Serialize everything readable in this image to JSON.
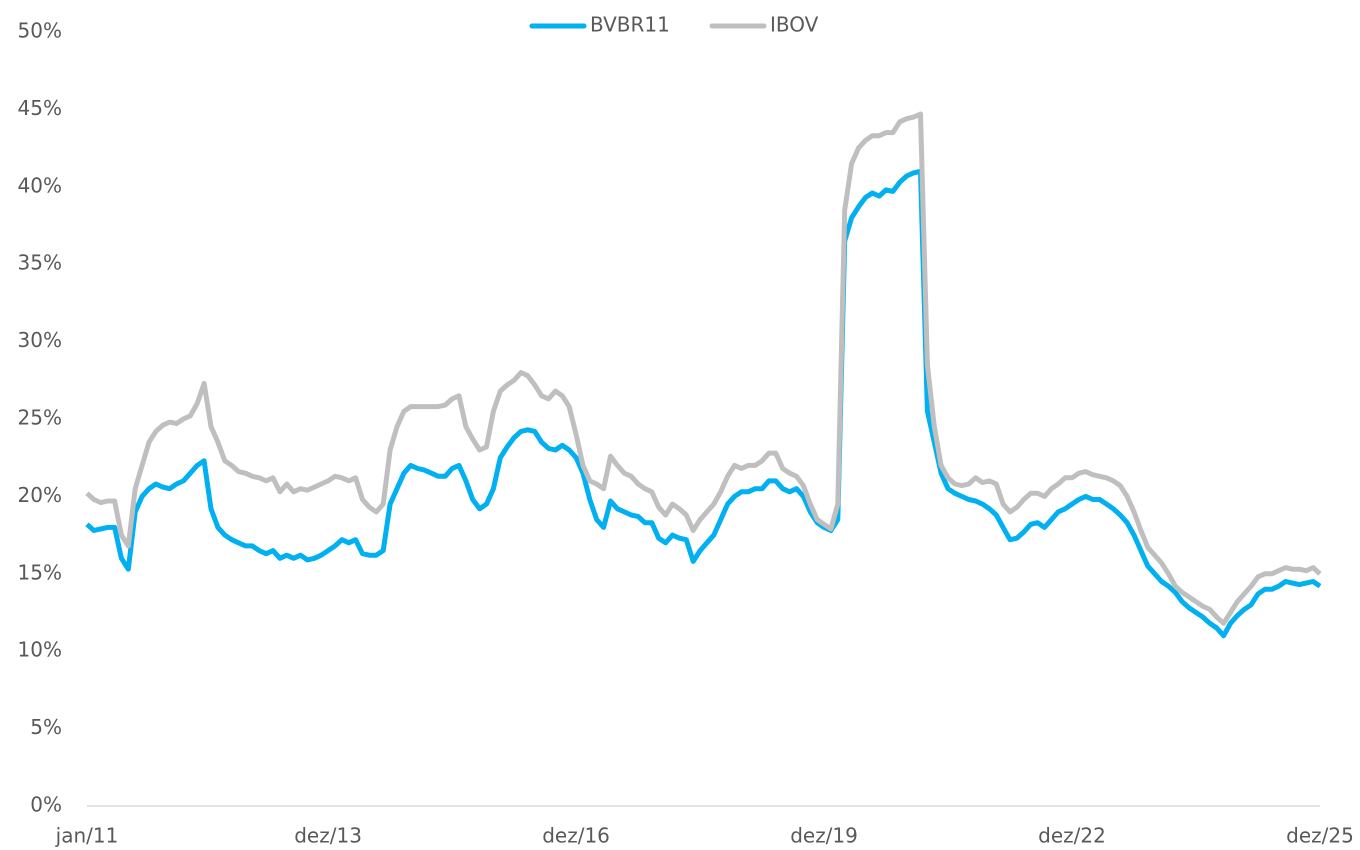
{
  "chart_data": {
    "type": "line",
    "categories": [
      "jan/11",
      null,
      null,
      null,
      null,
      null,
      null,
      null,
      null,
      null,
      null,
      null,
      null,
      null,
      null,
      null,
      null,
      null,
      null,
      null,
      null,
      null,
      null,
      null,
      null,
      null,
      null,
      null,
      null,
      null,
      null,
      null,
      null,
      null,
      null,
      "dez/13",
      null,
      null,
      null,
      null,
      null,
      null,
      null,
      null,
      null,
      null,
      null,
      null,
      null,
      null,
      null,
      null,
      null,
      null,
      null,
      null,
      null,
      null,
      null,
      null,
      null,
      null,
      null,
      null,
      null,
      null,
      null,
      null,
      null,
      null,
      null,
      "dez/16",
      null,
      null,
      null,
      null,
      null,
      null,
      null,
      null,
      null,
      null,
      null,
      null,
      null,
      null,
      null,
      null,
      null,
      null,
      null,
      null,
      null,
      null,
      null,
      null,
      null,
      null,
      null,
      null,
      null,
      null,
      null,
      null,
      null,
      null,
      null,
      "dez/19",
      null,
      null,
      null,
      null,
      null,
      null,
      null,
      null,
      null,
      null,
      null,
      null,
      null,
      null,
      null,
      null,
      null,
      null,
      null,
      null,
      null,
      null,
      null,
      null,
      null,
      null,
      null,
      null,
      null,
      null,
      null,
      null,
      null,
      null,
      null,
      "dez/22",
      null,
      null,
      null,
      null,
      null,
      null,
      null,
      null,
      null,
      null,
      null,
      null,
      null,
      null,
      null,
      null,
      null,
      null,
      null,
      null,
      null,
      null,
      null,
      null,
      null,
      null,
      null,
      null,
      null,
      null,
      null,
      null,
      null,
      null,
      null,
      "dez/25"
    ],
    "series": [
      {
        "name": "BVBR11",
        "color": "#00b0f0",
        "values": [
          18.2,
          17.8,
          17.9,
          18.0,
          18.0,
          16.0,
          15.3,
          19.0,
          20.0,
          20.5,
          20.8,
          20.6,
          20.5,
          20.8,
          21.0,
          21.5,
          22.0,
          22.3,
          19.2,
          18.0,
          17.5,
          17.2,
          17.0,
          16.8,
          16.8,
          16.5,
          16.3,
          16.5,
          16.0,
          16.2,
          16.0,
          16.2,
          15.9,
          16.0,
          16.2,
          16.5,
          16.8,
          17.2,
          17.0,
          17.2,
          16.3,
          16.2,
          16.2,
          16.5,
          19.5,
          20.5,
          21.5,
          22.0,
          21.8,
          21.7,
          21.5,
          21.3,
          21.3,
          21.8,
          22.0,
          21.0,
          19.8,
          19.2,
          19.5,
          20.5,
          22.5,
          23.2,
          23.8,
          24.2,
          24.3,
          24.2,
          23.5,
          23.1,
          23.0,
          23.3,
          23.0,
          22.5,
          21.5,
          19.8,
          18.5,
          18.0,
          19.7,
          19.2,
          19.0,
          18.8,
          18.7,
          18.3,
          18.3,
          17.3,
          17.0,
          17.5,
          17.3,
          17.2,
          15.8,
          16.5,
          17.0,
          17.5,
          18.5,
          19.5,
          20.0,
          20.3,
          20.3,
          20.5,
          20.5,
          21.0,
          21.0,
          20.5,
          20.3,
          20.5,
          20.0,
          19.0,
          18.3,
          18.0,
          17.8,
          18.5,
          36.5,
          38.0,
          38.7,
          39.3,
          39.6,
          39.4,
          39.8,
          39.7,
          40.3,
          40.7,
          40.9,
          41.0,
          25.5,
          23.5,
          21.5,
          20.5,
          20.2,
          20.0,
          19.8,
          19.7,
          19.5,
          19.2,
          18.8,
          18.0,
          17.2,
          17.3,
          17.7,
          18.2,
          18.3,
          18.0,
          18.5,
          19.0,
          19.2,
          19.5,
          19.8,
          20.0,
          19.8,
          19.8,
          19.5,
          19.2,
          18.8,
          18.3,
          17.5,
          16.5,
          15.5,
          15.0,
          14.5,
          14.2,
          13.8,
          13.2,
          12.8,
          12.5,
          12.2,
          11.8,
          11.5,
          11.0,
          11.8,
          12.3,
          12.7,
          13.0,
          13.7,
          14.0,
          14.0,
          14.2,
          14.5,
          14.4,
          14.3,
          14.4,
          14.5,
          14.2
        ]
      },
      {
        "name": "IBOV",
        "color": "#bfbfbf",
        "values": [
          20.2,
          19.8,
          19.6,
          19.7,
          19.7,
          17.5,
          16.8,
          20.5,
          22.0,
          23.5,
          24.2,
          24.6,
          24.8,
          24.7,
          25.0,
          25.2,
          26.0,
          27.3,
          24.5,
          23.5,
          22.3,
          22.0,
          21.6,
          21.5,
          21.3,
          21.2,
          21.0,
          21.2,
          20.3,
          20.8,
          20.3,
          20.5,
          20.4,
          20.6,
          20.8,
          21.0,
          21.3,
          21.2,
          21.0,
          21.2,
          19.8,
          19.3,
          19.0,
          19.5,
          23.0,
          24.5,
          25.5,
          25.8,
          25.8,
          25.8,
          25.8,
          25.8,
          25.9,
          26.3,
          26.5,
          24.5,
          23.7,
          23.0,
          23.2,
          25.5,
          26.8,
          27.2,
          27.5,
          28.0,
          27.8,
          27.2,
          26.5,
          26.3,
          26.8,
          26.5,
          25.8,
          24.0,
          22.0,
          21.0,
          20.8,
          20.5,
          22.6,
          22.0,
          21.5,
          21.3,
          20.8,
          20.5,
          20.3,
          19.3,
          18.8,
          19.5,
          19.2,
          18.8,
          17.8,
          18.5,
          19.0,
          19.5,
          20.3,
          21.3,
          22.0,
          21.8,
          22.0,
          22.0,
          22.3,
          22.8,
          22.8,
          21.8,
          21.5,
          21.3,
          20.7,
          19.5,
          18.5,
          18.2,
          17.9,
          19.5,
          38.5,
          41.5,
          42.5,
          43.0,
          43.3,
          43.3,
          43.5,
          43.5,
          44.2,
          44.4,
          44.5,
          44.7,
          28.5,
          24.5,
          22.0,
          21.2,
          20.8,
          20.7,
          20.8,
          21.2,
          20.9,
          21.0,
          20.8,
          19.5,
          19.0,
          19.3,
          19.8,
          20.2,
          20.2,
          20.0,
          20.5,
          20.8,
          21.2,
          21.2,
          21.5,
          21.6,
          21.4,
          21.3,
          21.2,
          21.0,
          20.7,
          20.0,
          19.0,
          17.8,
          16.7,
          16.2,
          15.7,
          15.0,
          14.2,
          13.8,
          13.5,
          13.2,
          12.9,
          12.7,
          12.2,
          11.8,
          12.5,
          13.2,
          13.7,
          14.2,
          14.8,
          15.0,
          15.0,
          15.2,
          15.4,
          15.3,
          15.3,
          15.2,
          15.4,
          15.0
        ]
      }
    ],
    "ylim": [
      0,
      50
    ],
    "yticks": [
      {
        "value": 0,
        "label": "0%"
      },
      {
        "value": 5,
        "label": "5%"
      },
      {
        "value": 10,
        "label": "10%"
      },
      {
        "value": 15,
        "label": "15%"
      },
      {
        "value": 20,
        "label": "20%"
      },
      {
        "value": 25,
        "label": "25%"
      },
      {
        "value": 30,
        "label": "30%"
      },
      {
        "value": 35,
        "label": "35%"
      },
      {
        "value": 40,
        "label": "40%"
      },
      {
        "value": 45,
        "label": "45%"
      },
      {
        "value": 50,
        "label": "50%"
      }
    ],
    "grid": false,
    "legend": "top"
  }
}
